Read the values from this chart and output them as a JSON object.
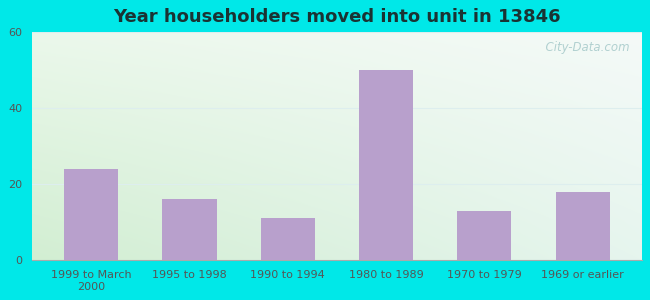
{
  "title": "Year householders moved into unit in 13846",
  "categories": [
    "1999 to March\n2000",
    "1995 to 1998",
    "1990 to 1994",
    "1980 to 1989",
    "1970 to 1979",
    "1969 or earlier"
  ],
  "values": [
    24,
    16,
    11,
    50,
    13,
    18
  ],
  "bar_color": "#b8a0cc",
  "ylim": [
    0,
    60
  ],
  "yticks": [
    0,
    20,
    40,
    60
  ],
  "outer_bg": "#00e8e8",
  "title_color": "#1a3333",
  "title_fontsize": 13,
  "tick_fontsize": 8,
  "tick_color": "#555555",
  "watermark": "  City-Data.com",
  "watermark_color": "#aacccc",
  "grid_color": "#ddeeee",
  "plot_bg_topleft": [
    235,
    248,
    235
  ],
  "plot_bg_topright": [
    245,
    250,
    248
  ],
  "plot_bg_bottomleft": [
    210,
    238,
    210
  ],
  "plot_bg_bottomright": [
    230,
    245,
    238
  ]
}
